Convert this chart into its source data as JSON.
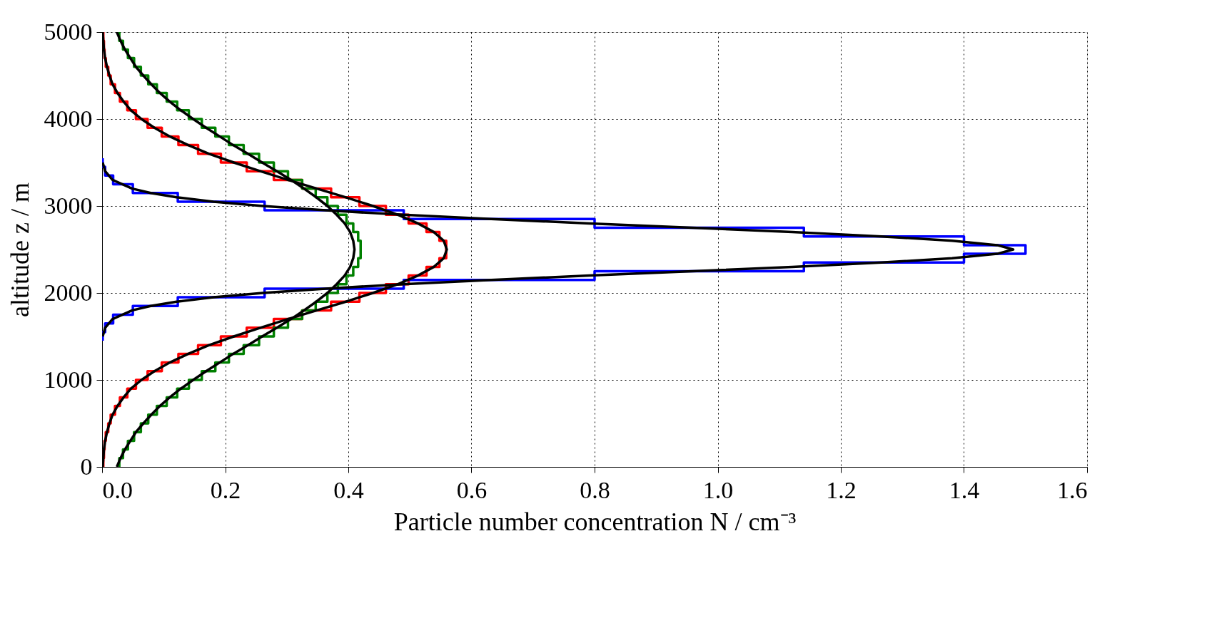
{
  "chart_data": {
    "type": "line",
    "xlabel": "Particle number concentration N / cm⁻³",
    "ylabel": "altitude z / m",
    "xlim": [
      0,
      1.6
    ],
    "xticks": [
      {
        "value": 0,
        "label": "0.0"
      },
      0.2,
      0.4,
      0.6,
      0.8,
      {
        "value": 1,
        "label": "1.0"
      },
      1.2,
      1.4,
      1.6
    ],
    "ylim": [
      0,
      5000
    ],
    "yticks": [
      0,
      1000,
      2000,
      3000,
      4000,
      5000
    ],
    "grid": true,
    "line_style": "solid",
    "marker": "none",
    "series": [
      {
        "type": "step",
        "color": "#ff0000",
        "x": [
          0.002,
          0.003,
          0.004,
          0.006,
          0.01,
          0.014,
          0.021,
          0.029,
          0.041,
          0.055,
          0.074,
          0.097,
          0.124,
          0.156,
          0.193,
          0.235,
          0.279,
          0.325,
          0.372,
          0.418,
          0.461,
          0.498,
          0.527,
          0.548,
          0.559,
          0.559,
          0.548,
          0.527,
          0.498,
          0.461,
          0.418,
          0.372,
          0.325,
          0.279,
          0.235,
          0.193,
          0.156,
          0.124,
          0.097,
          0.074,
          0.055,
          0.041,
          0.029,
          0.021,
          0.014,
          0.01,
          0.006,
          0.004,
          0.003,
          0.002,
          0.002
        ],
        "values": [
          0,
          100,
          200,
          300,
          400,
          500,
          600,
          700,
          800,
          900,
          1000,
          1100,
          1200,
          1300,
          1400,
          1500,
          1600,
          1700,
          1800,
          1900,
          2000,
          2100,
          2200,
          2300,
          2400,
          2500,
          2600,
          2700,
          2800,
          2900,
          3000,
          3100,
          3200,
          3300,
          3400,
          3500,
          3600,
          3700,
          3800,
          3900,
          4000,
          4100,
          4200,
          4300,
          4400,
          4500,
          4600,
          4700,
          4800,
          4900,
          5000
        ]
      },
      {
        "type": "step",
        "color": "#008000",
        "x": [
          0.028,
          0.034,
          0.042,
          0.052,
          0.063,
          0.075,
          0.089,
          0.105,
          0.122,
          0.141,
          0.162,
          0.184,
          0.206,
          0.23,
          0.255,
          0.279,
          0.302,
          0.325,
          0.347,
          0.366,
          0.383,
          0.397,
          0.408,
          0.416,
          0.42,
          0.42,
          0.416,
          0.408,
          0.397,
          0.383,
          0.366,
          0.347,
          0.325,
          0.302,
          0.279,
          0.255,
          0.23,
          0.206,
          0.184,
          0.162,
          0.141,
          0.122,
          0.105,
          0.089,
          0.075,
          0.063,
          0.052,
          0.042,
          0.034,
          0.028,
          0.028
        ],
        "values": [
          0,
          100,
          200,
          300,
          400,
          500,
          600,
          700,
          800,
          900,
          1000,
          1100,
          1200,
          1300,
          1400,
          1500,
          1600,
          1700,
          1800,
          1900,
          2000,
          2100,
          2200,
          2300,
          2400,
          2500,
          2600,
          2700,
          2800,
          2900,
          3000,
          3100,
          3200,
          3300,
          3400,
          3500,
          3600,
          3700,
          3800,
          3900,
          4000,
          4100,
          4200,
          4300,
          4400,
          4500,
          4600,
          4700,
          4800,
          4900,
          5000
        ]
      },
      {
        "type": "step",
        "color": "#0000ff",
        "x": [
          0.001,
          0.005,
          0.018,
          0.05,
          0.123,
          0.264,
          0.49,
          0.8,
          1.14,
          1.4,
          1.5,
          1.4,
          1.14,
          0.8,
          0.49,
          0.264,
          0.123,
          0.05,
          0.018,
          0.005,
          0.001,
          0.001
        ],
        "values": [
          1450,
          1550,
          1650,
          1750,
          1850,
          1950,
          2050,
          2150,
          2250,
          2350,
          2450,
          2550,
          2650,
          2750,
          2850,
          2950,
          3050,
          3150,
          3250,
          3350,
          3450,
          3550
        ]
      },
      {
        "color": "#000000",
        "x": [
          0.001,
          0.002,
          0.003,
          0.005,
          0.008,
          0.012,
          0.017,
          0.025,
          0.035,
          0.047,
          0.064,
          0.085,
          0.11,
          0.14,
          0.174,
          0.214,
          0.257,
          0.302,
          0.349,
          0.396,
          0.44,
          0.48,
          0.513,
          0.539,
          0.555,
          0.56,
          0.555,
          0.539,
          0.513,
          0.48,
          0.44,
          0.396,
          0.349,
          0.302,
          0.257,
          0.214,
          0.174,
          0.14,
          0.11,
          0.085,
          0.064,
          0.047,
          0.035,
          0.025,
          0.017,
          0.012,
          0.008,
          0.005,
          0.003,
          0.002,
          0.001
        ],
        "values": [
          0,
          100,
          200,
          300,
          400,
          500,
          600,
          700,
          800,
          900,
          1000,
          1100,
          1200,
          1300,
          1400,
          1500,
          1600,
          1700,
          1800,
          1900,
          2000,
          2100,
          2200,
          2300,
          2400,
          2500,
          2600,
          2700,
          2800,
          2900,
          3000,
          3100,
          3200,
          3300,
          3400,
          3500,
          3600,
          3700,
          3800,
          3900,
          4000,
          4100,
          4200,
          4300,
          4400,
          4500,
          4600,
          4700,
          4800,
          4900,
          5000
        ]
      },
      {
        "color": "#000000",
        "x": [
          0.024,
          0.03,
          0.037,
          0.046,
          0.055,
          0.067,
          0.08,
          0.094,
          0.11,
          0.128,
          0.148,
          0.169,
          0.191,
          0.213,
          0.237,
          0.26,
          0.284,
          0.307,
          0.328,
          0.348,
          0.366,
          0.381,
          0.394,
          0.403,
          0.408,
          0.41,
          0.408,
          0.403,
          0.394,
          0.381,
          0.366,
          0.348,
          0.328,
          0.307,
          0.284,
          0.26,
          0.237,
          0.213,
          0.191,
          0.169,
          0.148,
          0.128,
          0.11,
          0.094,
          0.08,
          0.067,
          0.055,
          0.046,
          0.037,
          0.03,
          0.024
        ],
        "values": [
          0,
          100,
          200,
          300,
          400,
          500,
          600,
          700,
          800,
          900,
          1000,
          1100,
          1200,
          1300,
          1400,
          1500,
          1600,
          1700,
          1800,
          1900,
          2000,
          2100,
          2200,
          2300,
          2400,
          2500,
          2600,
          2700,
          2800,
          2900,
          3000,
          3100,
          3200,
          3300,
          3400,
          3500,
          3600,
          3700,
          3800,
          3900,
          4000,
          4100,
          4200,
          4300,
          4400,
          4500,
          4600,
          4700,
          4800,
          4900,
          5000
        ]
      },
      {
        "color": "#000000",
        "x": [
          0.001,
          0.005,
          0.017,
          0.049,
          0.079,
          0.121,
          0.181,
          0.261,
          0.363,
          0.489,
          0.632,
          0.792,
          0.959,
          1.121,
          1.266,
          1.381,
          1.454,
          1.48,
          1.454,
          1.381,
          1.266,
          1.121,
          0.959,
          0.792,
          0.632,
          0.489,
          0.363,
          0.261,
          0.181,
          0.121,
          0.079,
          0.049,
          0.017,
          0.005,
          0.001
        ],
        "values": [
          1500,
          1600,
          1700,
          1800,
          1850,
          1900,
          1950,
          2000,
          2050,
          2100,
          2150,
          2200,
          2250,
          2300,
          2350,
          2400,
          2450,
          2500,
          2550,
          2600,
          2650,
          2700,
          2750,
          2800,
          2850,
          2900,
          2950,
          3000,
          3050,
          3100,
          3150,
          3200,
          3300,
          3400,
          3500
        ]
      }
    ]
  }
}
